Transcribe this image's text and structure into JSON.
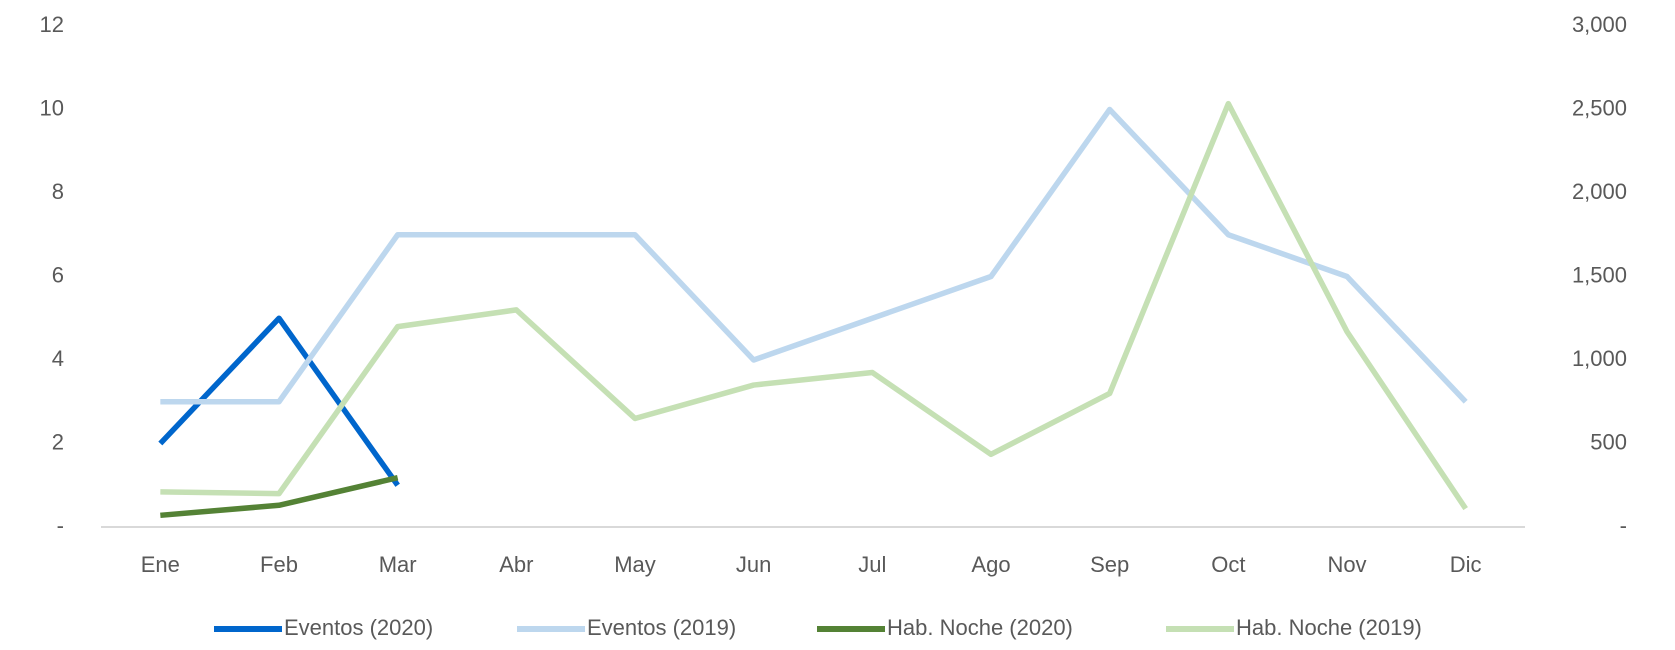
{
  "chart_data": {
    "type": "line",
    "categories": [
      "Ene",
      "Feb",
      "Mar",
      "Abr",
      "May",
      "Jun",
      "Jul",
      "Ago",
      "Sep",
      "Oct",
      "Nov",
      "Dic"
    ],
    "series": [
      {
        "name": "Eventos (2020)",
        "color": "#0066cc",
        "values": [
          2,
          5,
          1,
          null,
          null,
          null,
          null,
          null,
          null,
          null,
          null,
          null
        ]
      },
      {
        "name": "Eventos (2019)",
        "color": "#bdd7ee",
        "values": [
          3,
          3,
          7,
          7,
          7,
          4,
          5,
          6,
          10,
          7,
          6,
          3
        ]
      },
      {
        "name": "Hab. Noche (2020)",
        "color": "#548235",
        "axis": "y2",
        "values": [
          70,
          130,
          295,
          null,
          null,
          null,
          null,
          null,
          null,
          null,
          null,
          null
        ]
      },
      {
        "name": "Hab. Noche (2019)",
        "color": "#c5e0b4",
        "axis": "y2",
        "values": [
          210,
          200,
          1200,
          1300,
          650,
          850,
          925,
          435,
          800,
          2535,
          1170,
          110
        ]
      }
    ],
    "ylim": [
      0,
      12
    ],
    "yticks": [
      {
        "value": 0,
        "label": "-"
      },
      2,
      4,
      6,
      8,
      10,
      12
    ],
    "y2lim": [
      0,
      3000
    ],
    "y2ticks": [
      {
        "value": 0,
        "label": "-"
      },
      500,
      {
        "value": 1000,
        "label": "1,000"
      },
      {
        "value": 1500,
        "label": "1,500"
      },
      {
        "value": 2000,
        "label": "2,000"
      },
      {
        "value": 2500,
        "label": "2,500"
      },
      {
        "value": 3000,
        "label": "3,000"
      }
    ],
    "legend": "bottom"
  }
}
